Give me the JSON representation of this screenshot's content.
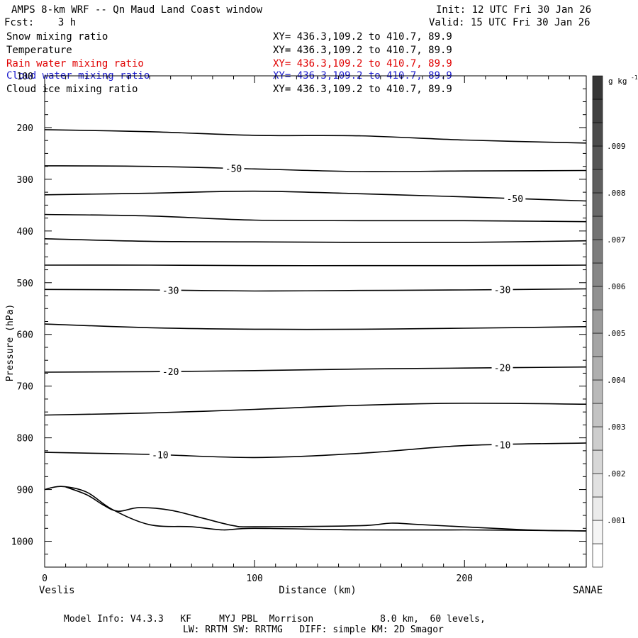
{
  "header": {
    "title": "AMPS 8-km WRF -- Qn Maud Land Coast window",
    "fcst_label": "Fcst:    3 h",
    "init": "Init: 12 UTC Fri 30 Jan 26",
    "valid": "Valid: 15 UTC Fri 30 Jan 26"
  },
  "fields": [
    {
      "name": "Snow mixing ratio",
      "xy": "XY= 436.3,109.2 to 410.7, 89.9",
      "color": "#000000"
    },
    {
      "name": "Temperature",
      "xy": "XY= 436.3,109.2 to 410.7, 89.9",
      "color": "#000000"
    },
    {
      "name": "Rain water mixing ratio",
      "xy": "XY= 436.3,109.2 to 410.7, 89.9",
      "color": "#e00000"
    },
    {
      "name": "Cloud water mixing ratio",
      "xy": "XY= 436.3,109.2 to 410.7, 89.9",
      "color": "#1a1acc"
    },
    {
      "name": "Cloud ice mixing ratio",
      "xy": "XY= 436.3,109.2 to 410.7, 89.9",
      "color": "#000000"
    }
  ],
  "footer": {
    "line1": "Model Info: V4.3.3   KF     MYJ PBL  Morrison            8.0 km,  60 levels,",
    "line2": "LW: RRTM SW: RRTMG   DIFF: simple KM: 2D Smagor"
  },
  "chart_data": {
    "type": "line",
    "xlabel": "Distance (km)",
    "ylabel": "Pressure (hPa)",
    "xlim": [
      0,
      258
    ],
    "ylim": [
      1050,
      100
    ],
    "x_ticks": [
      0,
      100,
      200
    ],
    "y_ticks": [
      100,
      200,
      300,
      400,
      500,
      600,
      700,
      800,
      900,
      1000
    ],
    "endpoint_left": "Veslis",
    "endpoint_right": "SANAE",
    "colorbar": {
      "unit": "g kg-1",
      "ticks": [
        ".001",
        ".002",
        ".003",
        ".004",
        ".005",
        ".006",
        ".007",
        ".008",
        ".009"
      ]
    },
    "series": [
      {
        "label": "",
        "points": [
          [
            0,
            204
          ],
          [
            50,
            208
          ],
          [
            100,
            215
          ],
          [
            150,
            216
          ],
          [
            200,
            224
          ],
          [
            258,
            230
          ]
        ]
      },
      {
        "label": "-50",
        "points": [
          [
            0,
            274
          ],
          [
            50,
            275
          ],
          [
            100,
            280
          ],
          [
            150,
            285
          ],
          [
            200,
            284
          ],
          [
            258,
            283
          ]
        ]
      },
      {
        "label": "-50",
        "points": [
          [
            0,
            330
          ],
          [
            50,
            327
          ],
          [
            100,
            323
          ],
          [
            150,
            328
          ],
          [
            200,
            334
          ],
          [
            258,
            342
          ]
        ]
      },
      {
        "label": "",
        "points": [
          [
            0,
            368
          ],
          [
            50,
            371
          ],
          [
            100,
            379
          ],
          [
            150,
            380
          ],
          [
            200,
            380
          ],
          [
            258,
            382
          ]
        ]
      },
      {
        "label": "",
        "points": [
          [
            0,
            415
          ],
          [
            50,
            420
          ],
          [
            100,
            421
          ],
          [
            150,
            422
          ],
          [
            200,
            422
          ],
          [
            258,
            419
          ]
        ]
      },
      {
        "label": "",
        "points": [
          [
            0,
            466
          ],
          [
            50,
            466
          ],
          [
            100,
            467
          ],
          [
            150,
            467
          ],
          [
            200,
            467
          ],
          [
            258,
            466
          ]
        ]
      },
      {
        "label": "-30",
        "points": [
          [
            0,
            513
          ],
          [
            50,
            514
          ],
          [
            100,
            516
          ],
          [
            150,
            515
          ],
          [
            200,
            514
          ],
          [
            258,
            512
          ]
        ]
      },
      {
        "label": "",
        "points": [
          [
            0,
            580
          ],
          [
            50,
            587
          ],
          [
            100,
            590
          ],
          [
            150,
            590
          ],
          [
            200,
            588
          ],
          [
            258,
            585
          ]
        ]
      },
      {
        "label": "-20",
        "points": [
          [
            0,
            673
          ],
          [
            50,
            672
          ],
          [
            100,
            670
          ],
          [
            150,
            667
          ],
          [
            200,
            665
          ],
          [
            258,
            663
          ]
        ]
      },
      {
        "label": "",
        "points": [
          [
            0,
            756
          ],
          [
            50,
            752
          ],
          [
            100,
            745
          ],
          [
            150,
            737
          ],
          [
            200,
            733
          ],
          [
            258,
            735
          ]
        ]
      },
      {
        "label": "-10",
        "points": [
          [
            0,
            828
          ],
          [
            50,
            832
          ],
          [
            100,
            838
          ],
          [
            150,
            830
          ],
          [
            200,
            815
          ],
          [
            258,
            810
          ]
        ]
      },
      {
        "label": "",
        "points": [
          [
            0,
            900
          ],
          [
            8,
            894
          ],
          [
            20,
            905
          ],
          [
            32,
            938
          ],
          [
            50,
            968
          ],
          [
            70,
            972
          ],
          [
            85,
            978
          ],
          [
            100,
            975
          ],
          [
            150,
            978
          ],
          [
            200,
            978
          ],
          [
            258,
            980
          ]
        ]
      },
      {
        "label": "",
        "points": [
          [
            10,
            895
          ],
          [
            20,
            910
          ],
          [
            28,
            930
          ],
          [
            35,
            942
          ],
          [
            45,
            935
          ],
          [
            60,
            940
          ],
          [
            75,
            955
          ],
          [
            90,
            970
          ],
          [
            100,
            972
          ],
          [
            150,
            970
          ],
          [
            165,
            965
          ],
          [
            180,
            968
          ],
          [
            230,
            978
          ],
          [
            258,
            980
          ]
        ]
      }
    ]
  }
}
